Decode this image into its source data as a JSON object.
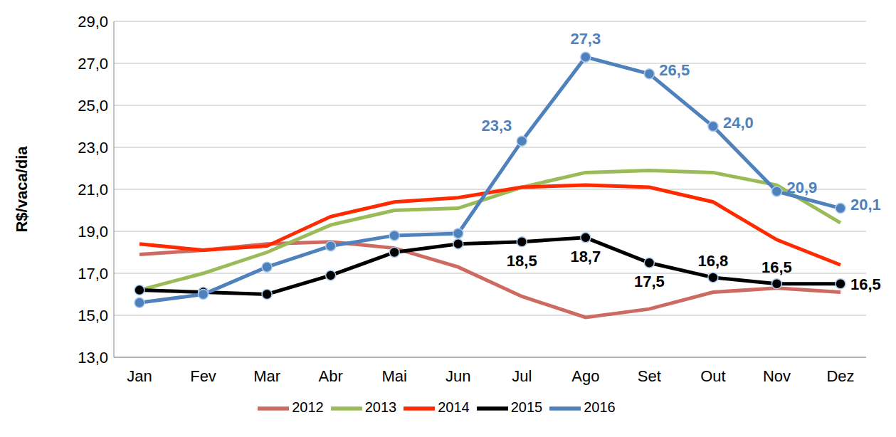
{
  "chart_data": {
    "type": "line",
    "y_label": "R$/vaca/dia",
    "categories": [
      "Jan",
      "Fev",
      "Mar",
      "Abr",
      "Mai",
      "Jun",
      "Jul",
      "Ago",
      "Set",
      "Out",
      "Nov",
      "Dez"
    ],
    "series": [
      {
        "name": "2012",
        "color": "#cd6a62",
        "values": [
          17.9,
          18.1,
          18.4,
          18.5,
          18.2,
          17.3,
          15.9,
          14.9,
          15.3,
          16.1,
          16.3,
          16.1
        ]
      },
      {
        "name": "2013",
        "color": "#9bbb59",
        "values": [
          16.2,
          17.0,
          18.0,
          19.3,
          20.0,
          20.1,
          21.1,
          21.8,
          21.9,
          21.8,
          21.2,
          19.4
        ]
      },
      {
        "name": "2014",
        "color": "#ff2a00",
        "values": [
          18.4,
          18.1,
          18.3,
          19.7,
          20.4,
          20.6,
          21.1,
          21.2,
          21.1,
          20.4,
          18.6,
          17.4
        ]
      },
      {
        "name": "2015",
        "color": "#000000",
        "marker": "circle",
        "values": [
          16.2,
          16.1,
          16.0,
          16.9,
          18.0,
          18.4,
          18.5,
          18.7,
          17.5,
          16.8,
          16.5,
          16.5
        ],
        "value_labels": [
          null,
          null,
          null,
          null,
          null,
          null,
          "18,5",
          "18,7",
          "17,5",
          "16,8",
          "16,5",
          "16,5"
        ]
      },
      {
        "name": "2016",
        "color": "#4f81bd",
        "marker": "circle",
        "values": [
          15.6,
          16.0,
          17.3,
          18.3,
          18.8,
          18.9,
          23.3,
          27.3,
          26.5,
          24.0,
          20.9,
          20.1
        ],
        "value_labels": [
          null,
          null,
          null,
          null,
          null,
          null,
          "23,3",
          "27,3",
          "26,5",
          "24,0",
          "20,9",
          "20,1"
        ]
      }
    ],
    "ylim": [
      13,
      29
    ],
    "yticks": [
      {
        "value": 13,
        "label": "13,0"
      },
      {
        "value": 15,
        "label": "15,0"
      },
      {
        "value": 17,
        "label": "17,0"
      },
      {
        "value": 19,
        "label": "19,0"
      },
      {
        "value": 21,
        "label": "21,0"
      },
      {
        "value": 23,
        "label": "23,0"
      },
      {
        "value": 25,
        "label": "25,0"
      },
      {
        "value": 27,
        "label": "27,0"
      },
      {
        "value": 29,
        "label": "29,0"
      }
    ],
    "grid": true,
    "legend": "bottom"
  }
}
